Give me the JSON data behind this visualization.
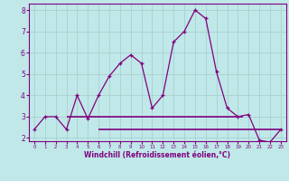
{
  "x": [
    0,
    1,
    2,
    3,
    4,
    5,
    6,
    7,
    8,
    9,
    10,
    11,
    12,
    13,
    14,
    15,
    16,
    17,
    18,
    19,
    20,
    21,
    22,
    23
  ],
  "y_main": [
    2.4,
    3.0,
    3.0,
    2.4,
    4.0,
    2.9,
    4.0,
    4.9,
    5.5,
    5.9,
    5.5,
    3.4,
    4.0,
    6.5,
    7.0,
    8.0,
    7.6,
    5.1,
    3.4,
    3.0,
    3.1,
    1.9,
    1.8,
    2.4
  ],
  "hline1_y": 3.0,
  "hline1_xstart": 3.0,
  "hline1_xend": 19.5,
  "hline2_y": 2.4,
  "hline2_xstart": 6.0,
  "hline2_xend": 23.0,
  "line_color": "#800080",
  "bg_color": "#c0e8e8",
  "xlabel": "Windchill (Refroidissement éolien,°C)",
  "xlim": [
    -0.5,
    23.5
  ],
  "ylim": [
    1.85,
    8.3
  ],
  "yticks": [
    2,
    3,
    4,
    5,
    6,
    7,
    8
  ],
  "xticks": [
    0,
    1,
    2,
    3,
    4,
    5,
    6,
    7,
    8,
    9,
    10,
    11,
    12,
    13,
    14,
    15,
    16,
    17,
    18,
    19,
    20,
    21,
    22,
    23
  ],
  "grid_color": "#aacfcf",
  "marker": "+"
}
